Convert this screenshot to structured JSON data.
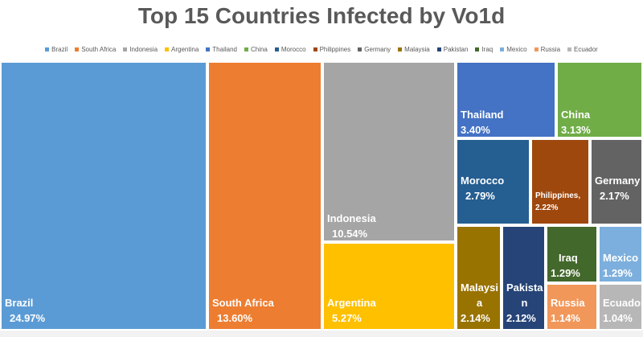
{
  "chart_data": {
    "type": "treemap",
    "title": "Top 15 Countries Infected by Vo1d",
    "legend_position": "top",
    "items": [
      {
        "name": "Brazil",
        "label": "Brazil",
        "value_label": "24.97%",
        "value": 24.97,
        "color": "#5b9bd5"
      },
      {
        "name": "South Africa",
        "label": "South Africa",
        "value_label": "13.60%",
        "value": 13.6,
        "color": "#ed7d31"
      },
      {
        "name": "Indonesia",
        "label": "Indonesia",
        "value_label": "10.54%",
        "value": 10.54,
        "color": "#a5a5a5"
      },
      {
        "name": "Argentina",
        "label": "Argentina",
        "value_label": "5.27%",
        "value": 5.27,
        "color": "#ffc000"
      },
      {
        "name": "Thailand",
        "label": "Thailand",
        "value_label": "3.40%",
        "value": 3.4,
        "color": "#4472c4"
      },
      {
        "name": "China",
        "label": "China",
        "value_label": "3.13%",
        "value": 3.13,
        "color": "#70ad47"
      },
      {
        "name": "Morocco",
        "label": "Morocco",
        "value_label": "2.79%",
        "value": 2.79,
        "color": "#255e91"
      },
      {
        "name": "Philippines",
        "label": "Philippines,",
        "value_label": "2.22%",
        "value": 2.22,
        "color": "#9e480e"
      },
      {
        "name": "Germany",
        "label": "Germany",
        "value_label": "2.17%",
        "value": 2.17,
        "color": "#636363"
      },
      {
        "name": "Malaysia",
        "label": "Malaysi a",
        "value_label": "2.14%",
        "value": 2.14,
        "color": "#997300"
      },
      {
        "name": "Pakistan",
        "label": "Pakista n",
        "value_label": "2.12%",
        "value": 2.12,
        "color": "#264478"
      },
      {
        "name": "Iraq",
        "label": "Iraq",
        "value_label": "1.29%",
        "value": 1.29,
        "color": "#43682b"
      },
      {
        "name": "Mexico",
        "label": "Mexico",
        "value_label": "1.29%",
        "value": 1.29,
        "color": "#7cafdd"
      },
      {
        "name": "Russia",
        "label": "Russia",
        "value_label": "1.14%",
        "value": 1.14,
        "color": "#f1975a"
      },
      {
        "name": "Ecuador",
        "label": "Ecuador",
        "value_label": "1.04%",
        "value": 1.04,
        "color": "#b7b7b7"
      }
    ]
  }
}
